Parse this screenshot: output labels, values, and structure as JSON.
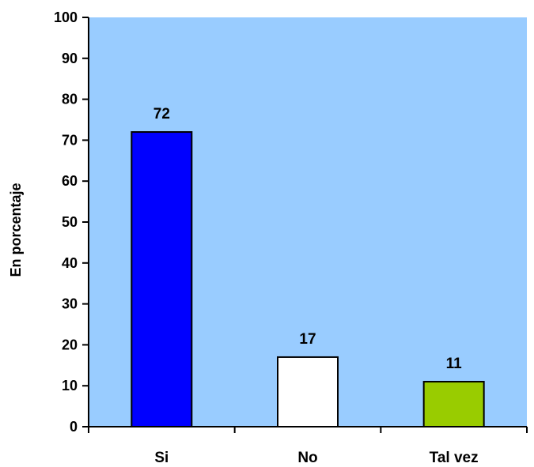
{
  "chart_data": {
    "type": "bar",
    "categories": [
      "Si",
      "No",
      "Tal vez"
    ],
    "values": [
      72,
      17,
      11
    ],
    "data_labels": [
      "72",
      "17",
      "11"
    ],
    "bar_colors": [
      "#0000FF",
      "#FFFFFF",
      "#99CC00"
    ],
    "title": "",
    "xlabel": "",
    "ylabel": "En porcentaje",
    "ylim": [
      0,
      100
    ],
    "yticks": [
      0,
      10,
      20,
      30,
      40,
      50,
      60,
      70,
      80,
      90,
      100
    ],
    "ytick_labels": [
      "0",
      "10",
      "20",
      "30",
      "40",
      "50",
      "60",
      "70",
      "80",
      "90",
      "100"
    ],
    "grid": false,
    "legend": "none",
    "plot_background": "#99CCFF"
  }
}
